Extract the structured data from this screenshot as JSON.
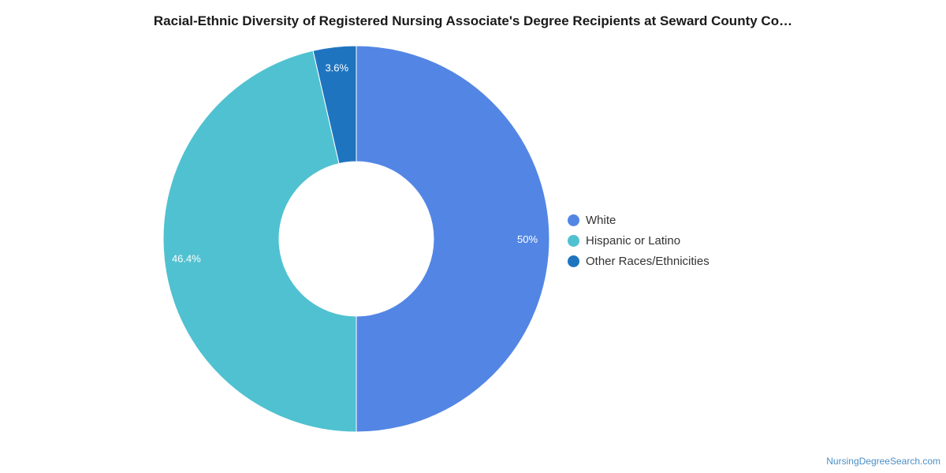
{
  "chart_data": {
    "type": "pie",
    "title": "Racial-Ethnic Diversity of Registered Nursing Associate's Degree Recipients at Seward County Co…",
    "donut": true,
    "legend_position": "right",
    "series": [
      {
        "name": "White",
        "value": 50,
        "label": "50%",
        "color": "#5386e4"
      },
      {
        "name": "Hispanic or Latino",
        "value": 46.4,
        "label": "46.4%",
        "color": "#50c1d0"
      },
      {
        "name": "Other Races/Ethnicities",
        "value": 3.6,
        "label": "3.6%",
        "color": "#1f74bf"
      }
    ]
  },
  "footer": {
    "source": "NursingDegreeSearch.com"
  }
}
